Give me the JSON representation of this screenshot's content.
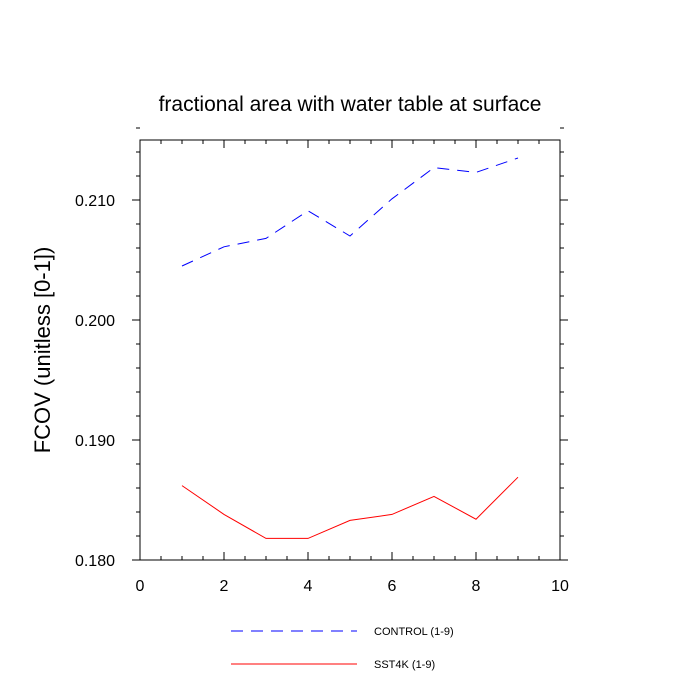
{
  "chart_data": {
    "type": "line",
    "title": "fractional area with water table at surface",
    "xlabel": "",
    "ylabel": "FCOV  (unitless [0-1])",
    "xlim": [
      0,
      10
    ],
    "ylim": [
      0.18,
      0.215
    ],
    "x_ticks": [
      "0",
      "2",
      "4",
      "6",
      "8",
      "10"
    ],
    "y_ticks": [
      "0.180",
      "0.190",
      "0.200",
      "0.210"
    ],
    "grid": false,
    "legend_position": "bottom",
    "series": [
      {
        "name": "CONTROL (1-9)",
        "color": "#0000ff",
        "style": "dashed",
        "x": [
          1,
          2,
          3,
          4,
          5,
          6,
          7,
          8,
          9
        ],
        "values": [
          0.2045,
          0.2061,
          0.2068,
          0.2091,
          0.207,
          0.2101,
          0.2127,
          0.2123,
          0.2135
        ]
      },
      {
        "name": "SST4K (1-9)",
        "color": "#ff0000",
        "style": "solid",
        "x": [
          1,
          2,
          3,
          4,
          5,
          6,
          7,
          8,
          9
        ],
        "values": [
          0.1862,
          0.1838,
          0.1818,
          0.1818,
          0.1833,
          0.1838,
          0.1853,
          0.1834,
          0.1869
        ]
      }
    ]
  }
}
